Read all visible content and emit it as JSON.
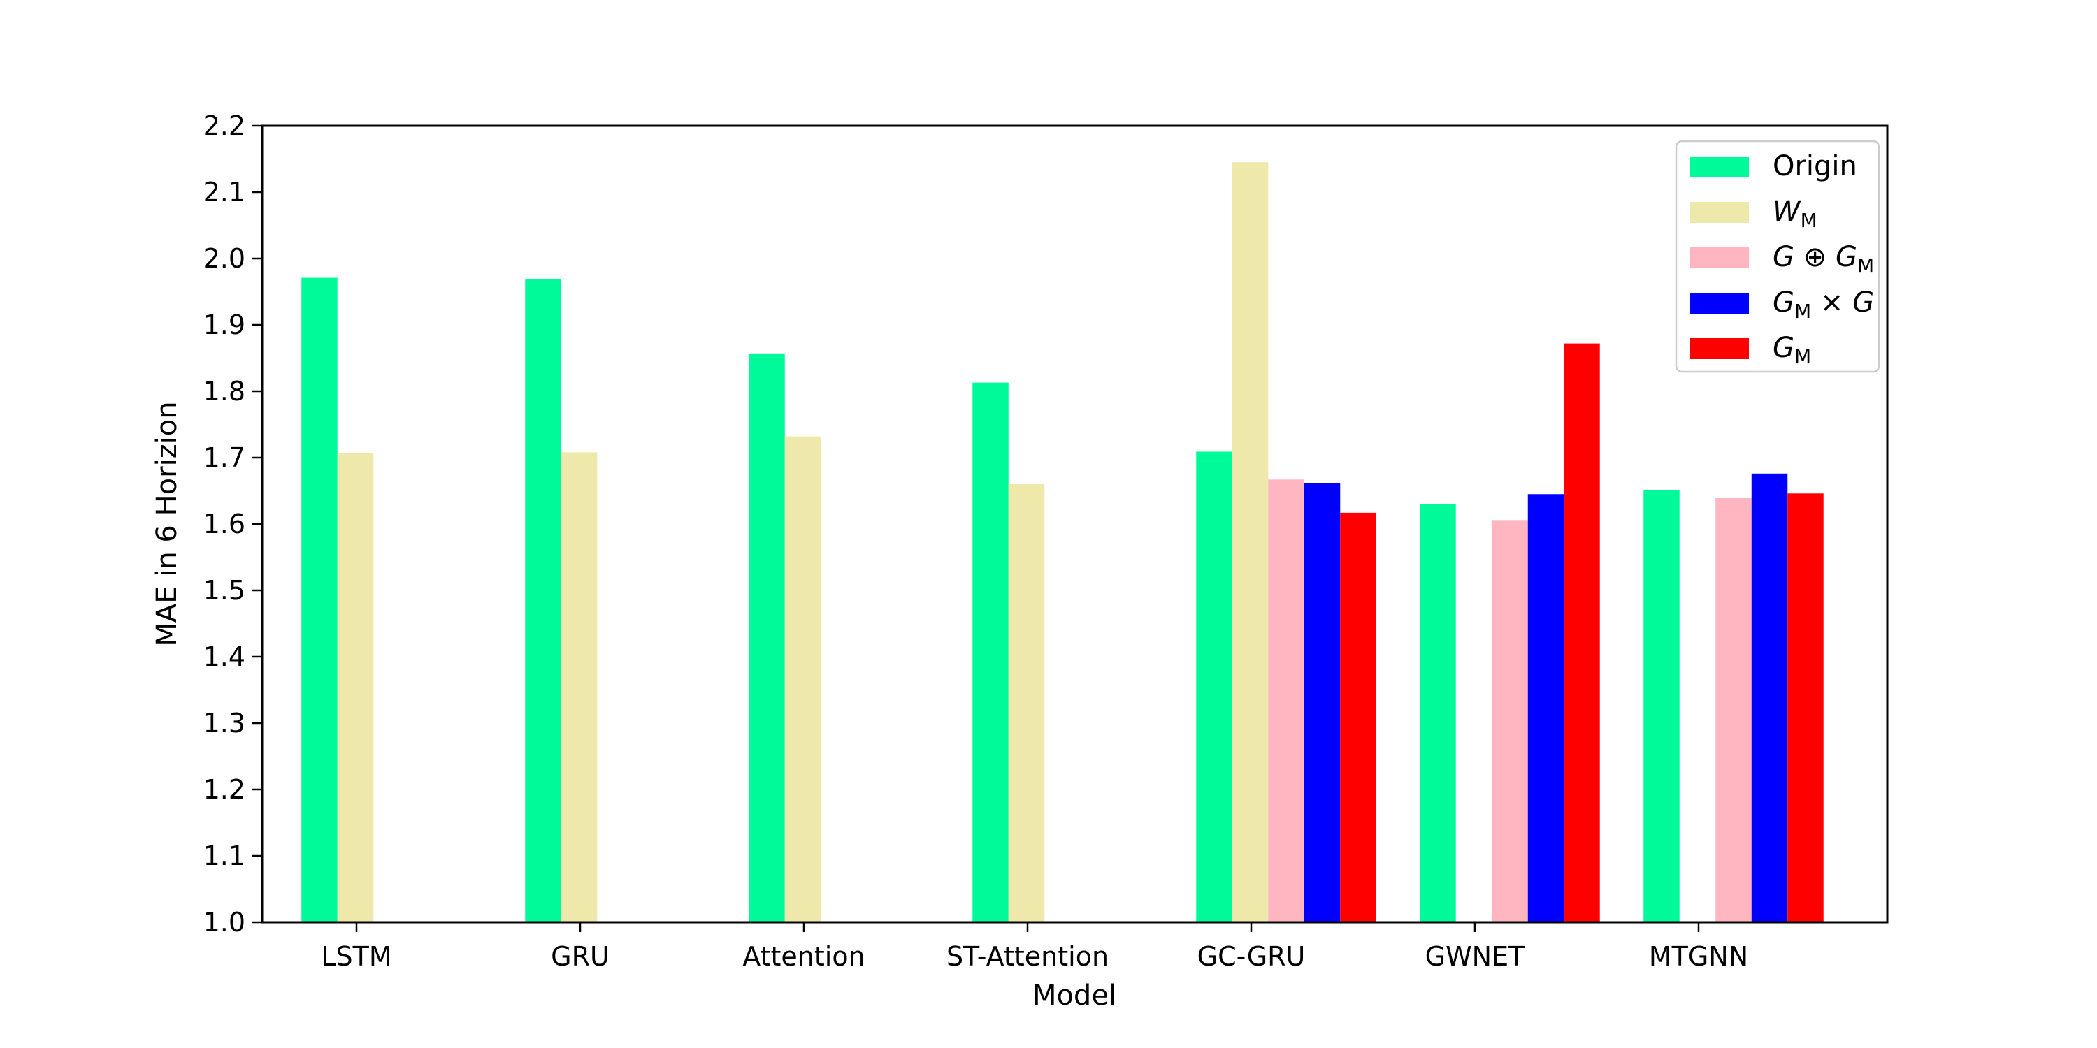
{
  "chart_data": {
    "type": "bar",
    "title": "",
    "xlabel": "Model",
    "ylabel": "MAE in 6 Horizion",
    "ylim": [
      1.0,
      2.2
    ],
    "yticks": [
      "1.0",
      "1.1",
      "1.2",
      "1.3",
      "1.4",
      "1.5",
      "1.6",
      "1.7",
      "1.8",
      "1.9",
      "2.0",
      "2.1",
      "2.2"
    ],
    "categories": [
      "LSTM",
      "GRU",
      "Attention",
      "ST-Attention",
      "GC-GRU",
      "GWNET",
      "MTGNN"
    ],
    "grid": false,
    "legend_position": "top-right",
    "series": [
      {
        "name": "Origin",
        "color": "#00fa9a",
        "values": [
          1.971,
          1.969,
          1.857,
          1.813,
          1.709,
          1.63,
          1.651
        ]
      },
      {
        "name": "W_M",
        "color": "#eee8aa",
        "values": [
          1.707,
          1.708,
          1.732,
          1.66,
          2.145,
          null,
          null
        ]
      },
      {
        "name": "G ⊕ G_M",
        "color": "#ffb6c1",
        "values": [
          null,
          null,
          null,
          null,
          1.667,
          1.606,
          1.639
        ]
      },
      {
        "name": "G_M × G",
        "color": "#0000ff",
        "values": [
          null,
          null,
          null,
          null,
          1.662,
          1.645,
          1.676
        ]
      },
      {
        "name": "G_M",
        "color": "#ff0000",
        "values": [
          null,
          null,
          null,
          null,
          1.617,
          1.872,
          1.646
        ]
      }
    ]
  }
}
